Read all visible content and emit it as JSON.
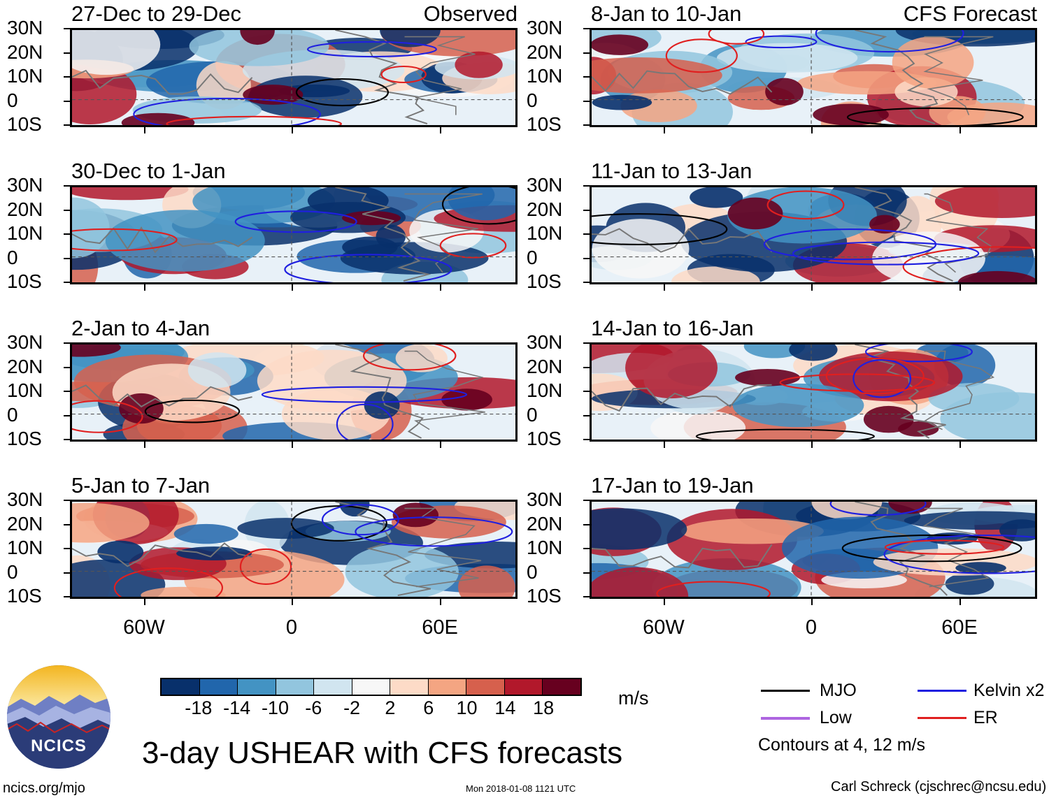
{
  "panels": [
    {
      "title": "27-Dec to 29-Dec",
      "right_label": "Observed"
    },
    {
      "title": "8-Jan to 10-Jan",
      "right_label": "CFS Forecast"
    },
    {
      "title": "30-Dec to 1-Jan",
      "right_label": ""
    },
    {
      "title": "11-Jan to 13-Jan",
      "right_label": ""
    },
    {
      "title": "2-Jan to 4-Jan",
      "right_label": ""
    },
    {
      "title": "14-Jan to 16-Jan",
      "right_label": ""
    },
    {
      "title": "5-Jan to 7-Jan",
      "right_label": ""
    },
    {
      "title": "17-Jan to 19-Jan",
      "right_label": ""
    }
  ],
  "lat_labels": [
    "30N",
    "20N",
    "10N",
    "0",
    "10S"
  ],
  "lon_labels": [
    "60W",
    "0",
    "60E"
  ],
  "colorbar": {
    "labels": [
      "-18",
      "-14",
      "-10",
      "-6",
      "-2",
      "2",
      "6",
      "10",
      "14",
      "18"
    ],
    "colors": [
      "#08306b",
      "#2166ac",
      "#4393c3",
      "#92c5de",
      "#d1e5f0",
      "#f7f7f7",
      "#fddbc7",
      "#f4a582",
      "#d6604d",
      "#b2182b",
      "#67001f"
    ],
    "units": "m/s"
  },
  "legend": {
    "items": [
      {
        "label": "MJO",
        "color": "#000000"
      },
      {
        "label": "Kelvin x2",
        "color": "#1f1fe0"
      },
      {
        "label": "Low",
        "color": "#9a3fd8"
      },
      {
        "label": "ER",
        "color": "#e01f1f"
      }
    ],
    "note": "Contours at 4, 12 m/s"
  },
  "title": "3-day USHEAR with CFS forecasts",
  "logo_text": "NCICS",
  "footer": {
    "left": "ncics.org/mjo",
    "center": "Mon 2018-01-08 1121 UTC",
    "right": "Carl Schreck (cjschrec@ncsu.edu)"
  }
}
